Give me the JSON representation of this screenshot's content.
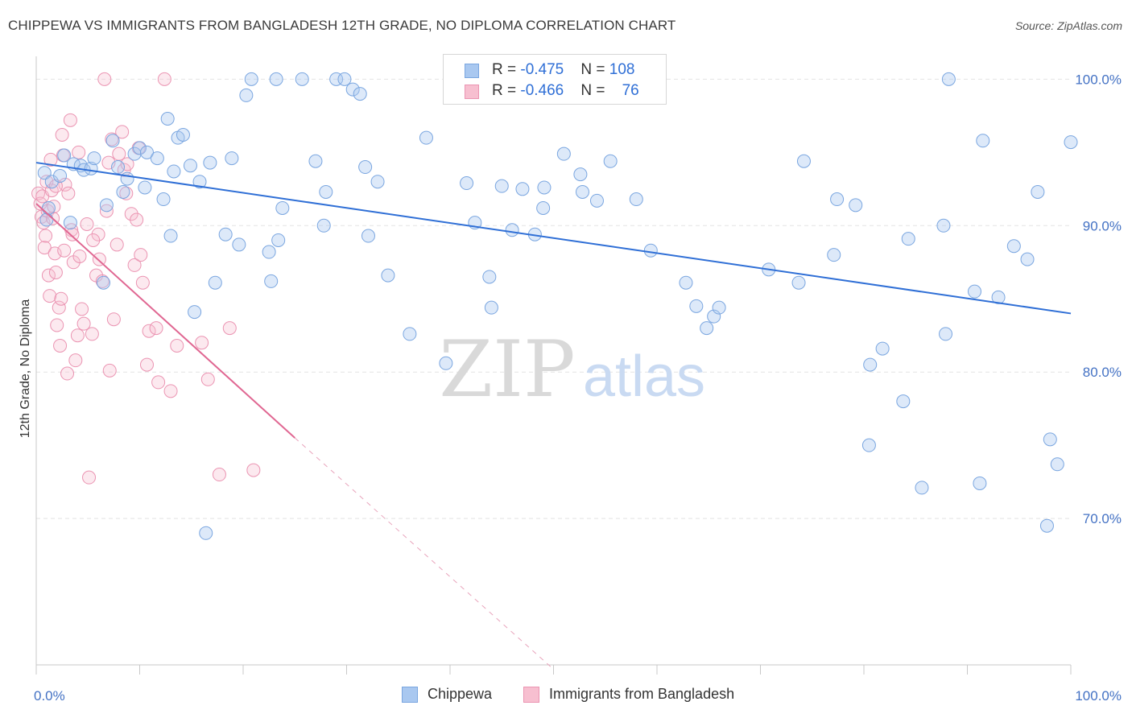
{
  "title": "CHIPPEWA VS IMMIGRANTS FROM BANGLADESH 12TH GRADE, NO DIPLOMA CORRELATION CHART",
  "source": "Source: ZipAtlas.com",
  "watermark": {
    "zip": "ZIP",
    "atlas": "atlas"
  },
  "colors": {
    "series1_fill": "#a9c8f0",
    "series1_stroke": "#7aa6e0",
    "series1_line": "#2f6fd6",
    "series2_fill": "#f7bfd0",
    "series2_stroke": "#eb94b2",
    "series2_line": "#e06792",
    "axis_text": "#4472c4",
    "grid": "#e3e3e3"
  },
  "legend": {
    "rows": [
      {
        "r_label": "R = ",
        "r_value": "-0.475",
        "n_label": "N = ",
        "n_value": "108"
      },
      {
        "r_label": "R = ",
        "r_value": "-0.466",
        "n_label": "N = ",
        "n_value": "76"
      }
    ]
  },
  "bottom_legend": [
    "Chippewa",
    "Immigrants from Bangladesh"
  ],
  "chart_data": {
    "type": "scatter",
    "title": "CHIPPEWA VS IMMIGRANTS FROM BANGLADESH 12TH GRADE, NO DIPLOMA CORRELATION CHART",
    "xlabel": "",
    "ylabel": "12th Grade, No Diploma",
    "xlim": [
      0,
      100
    ],
    "ylim": [
      60,
      102
    ],
    "x_tick_labels": [
      "0.0%",
      "100.0%"
    ],
    "y_ticks": [
      70,
      80,
      90,
      100
    ],
    "y_tick_labels": [
      "70.0%",
      "80.0%",
      "90.0%",
      "100.0%"
    ],
    "grid": true,
    "legend_position": "top-center",
    "series": [
      {
        "name": "Chippewa",
        "r": -0.475,
        "n": 108,
        "trend": {
          "x": [
            0,
            100
          ],
          "y": [
            94.3,
            84.0
          ]
        },
        "points": [
          [
            0.8,
            93.6
          ],
          [
            1.0,
            90.4
          ],
          [
            1.2,
            91.2
          ],
          [
            1.5,
            93.0
          ],
          [
            2.3,
            93.4
          ],
          [
            2.7,
            94.8
          ],
          [
            3.3,
            90.2
          ],
          [
            3.6,
            94.2
          ],
          [
            4.3,
            94.1
          ],
          [
            4.6,
            93.8
          ],
          [
            5.3,
            93.9
          ],
          [
            5.6,
            94.6
          ],
          [
            6.5,
            86.1
          ],
          [
            6.8,
            91.4
          ],
          [
            7.4,
            95.8
          ],
          [
            7.9,
            94.0
          ],
          [
            8.4,
            92.3
          ],
          [
            8.8,
            93.2
          ],
          [
            9.5,
            94.9
          ],
          [
            10.0,
            95.3
          ],
          [
            10.5,
            92.6
          ],
          [
            10.7,
            95.0
          ],
          [
            11.7,
            94.6
          ],
          [
            12.3,
            91.8
          ],
          [
            12.7,
            97.3
          ],
          [
            13.0,
            89.3
          ],
          [
            13.3,
            93.7
          ],
          [
            13.7,
            96.0
          ],
          [
            14.2,
            96.2
          ],
          [
            14.9,
            94.1
          ],
          [
            15.3,
            84.1
          ],
          [
            15.8,
            93.0
          ],
          [
            16.4,
            69.0
          ],
          [
            16.8,
            94.3
          ],
          [
            17.3,
            86.1
          ],
          [
            18.3,
            89.4
          ],
          [
            18.9,
            94.6
          ],
          [
            19.6,
            88.7
          ],
          [
            20.3,
            98.9
          ],
          [
            20.8,
            100.0
          ],
          [
            22.5,
            88.2
          ],
          [
            22.7,
            86.2
          ],
          [
            23.2,
            100.0
          ],
          [
            23.4,
            89.0
          ],
          [
            23.8,
            91.2
          ],
          [
            25.7,
            100.0
          ],
          [
            27.0,
            94.4
          ],
          [
            27.8,
            90.0
          ],
          [
            28.0,
            92.3
          ],
          [
            29.0,
            100.0
          ],
          [
            29.8,
            100.0
          ],
          [
            30.6,
            99.3
          ],
          [
            31.3,
            99.0
          ],
          [
            31.8,
            94.0
          ],
          [
            32.1,
            89.3
          ],
          [
            33.0,
            93.0
          ],
          [
            34.0,
            86.6
          ],
          [
            36.1,
            82.6
          ],
          [
            37.7,
            96.0
          ],
          [
            39.6,
            80.6
          ],
          [
            41.6,
            92.9
          ],
          [
            42.4,
            90.2
          ],
          [
            43.8,
            86.5
          ],
          [
            44.0,
            84.4
          ],
          [
            45.0,
            92.7
          ],
          [
            46.0,
            89.7
          ],
          [
            47.0,
            92.5
          ],
          [
            48.2,
            89.4
          ],
          [
            49.0,
            91.2
          ],
          [
            49.1,
            92.6
          ],
          [
            51.0,
            94.9
          ],
          [
            52.6,
            93.5
          ],
          [
            52.8,
            92.3
          ],
          [
            54.2,
            91.7
          ],
          [
            55.5,
            94.4
          ],
          [
            58.0,
            91.8
          ],
          [
            59.4,
            88.3
          ],
          [
            62.8,
            86.1
          ],
          [
            63.8,
            84.5
          ],
          [
            64.8,
            83.0
          ],
          [
            65.5,
            83.8
          ],
          [
            66.0,
            84.4
          ],
          [
            70.8,
            87.0
          ],
          [
            73.7,
            86.1
          ],
          [
            74.2,
            94.4
          ],
          [
            77.1,
            88.0
          ],
          [
            77.4,
            91.8
          ],
          [
            79.2,
            91.4
          ],
          [
            80.5,
            75.0
          ],
          [
            80.6,
            80.5
          ],
          [
            81.8,
            81.6
          ],
          [
            83.8,
            78.0
          ],
          [
            84.3,
            89.1
          ],
          [
            85.6,
            72.1
          ],
          [
            87.7,
            90.0
          ],
          [
            87.9,
            82.6
          ],
          [
            88.2,
            100.0
          ],
          [
            90.7,
            85.5
          ],
          [
            91.2,
            72.4
          ],
          [
            91.5,
            95.8
          ],
          [
            93.0,
            85.1
          ],
          [
            94.5,
            88.6
          ],
          [
            95.8,
            87.7
          ],
          [
            96.8,
            92.3
          ],
          [
            97.7,
            69.5
          ],
          [
            98.0,
            75.4
          ],
          [
            98.7,
            73.7
          ],
          [
            100.0,
            95.7
          ]
        ]
      },
      {
        "name": "Immigrants from Bangladesh",
        "r": -0.466,
        "n": 76,
        "trend": {
          "x": [
            0,
            25
          ],
          "y": [
            91.5,
            75.5
          ]
        },
        "trend_dashed": {
          "x": [
            25,
            50
          ],
          "y": [
            75.5,
            59.7
          ]
        },
        "points": [
          [
            0.2,
            92.2
          ],
          [
            0.4,
            91.5
          ],
          [
            0.5,
            90.6
          ],
          [
            0.6,
            92.0
          ],
          [
            0.7,
            90.2
          ],
          [
            0.8,
            88.5
          ],
          [
            0.9,
            89.3
          ],
          [
            1.0,
            93.0
          ],
          [
            1.1,
            91.0
          ],
          [
            1.2,
            86.6
          ],
          [
            1.3,
            85.2
          ],
          [
            1.4,
            94.5
          ],
          [
            1.5,
            92.4
          ],
          [
            1.6,
            90.5
          ],
          [
            1.7,
            91.3
          ],
          [
            1.8,
            88.1
          ],
          [
            1.9,
            86.8
          ],
          [
            2.0,
            83.2
          ],
          [
            2.2,
            84.4
          ],
          [
            2.3,
            81.8
          ],
          [
            2.4,
            85.0
          ],
          [
            2.5,
            96.2
          ],
          [
            2.6,
            94.8
          ],
          [
            2.8,
            92.8
          ],
          [
            3.0,
            79.9
          ],
          [
            3.1,
            92.2
          ],
          [
            3.3,
            97.2
          ],
          [
            3.4,
            89.7
          ],
          [
            3.6,
            87.5
          ],
          [
            3.8,
            80.8
          ],
          [
            4.0,
            82.5
          ],
          [
            4.1,
            95.0
          ],
          [
            4.2,
            87.9
          ],
          [
            4.4,
            84.3
          ],
          [
            4.6,
            83.3
          ],
          [
            4.9,
            90.1
          ],
          [
            5.1,
            72.8
          ],
          [
            5.4,
            82.6
          ],
          [
            5.8,
            86.6
          ],
          [
            6.0,
            89.4
          ],
          [
            6.1,
            87.7
          ],
          [
            6.4,
            86.2
          ],
          [
            6.6,
            100.0
          ],
          [
            6.8,
            91.0
          ],
          [
            7.1,
            80.1
          ],
          [
            7.3,
            95.9
          ],
          [
            7.5,
            83.6
          ],
          [
            7.8,
            88.7
          ],
          [
            8.0,
            94.9
          ],
          [
            8.3,
            96.4
          ],
          [
            8.5,
            93.8
          ],
          [
            8.8,
            94.2
          ],
          [
            9.2,
            90.8
          ],
          [
            9.5,
            87.3
          ],
          [
            9.9,
            95.3
          ],
          [
            10.1,
            88.0
          ],
          [
            10.3,
            86.1
          ],
          [
            10.7,
            80.5
          ],
          [
            10.9,
            82.8
          ],
          [
            11.6,
            83.0
          ],
          [
            11.8,
            79.3
          ],
          [
            12.4,
            100.0
          ],
          [
            13.0,
            78.7
          ],
          [
            13.6,
            81.8
          ],
          [
            16.0,
            82.0
          ],
          [
            16.6,
            79.5
          ],
          [
            17.7,
            73.0
          ],
          [
            18.7,
            83.0
          ],
          [
            21.0,
            73.3
          ],
          [
            2.7,
            88.3
          ],
          [
            3.5,
            89.4
          ],
          [
            5.5,
            89.0
          ],
          [
            7.0,
            94.3
          ],
          [
            8.7,
            92.2
          ],
          [
            9.7,
            90.4
          ],
          [
            1.9,
            92.7
          ]
        ]
      }
    ]
  }
}
